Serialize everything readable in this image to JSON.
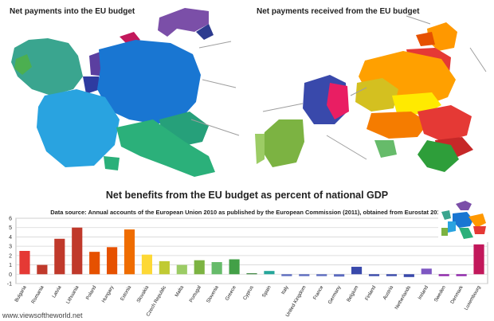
{
  "maps": {
    "left_title": "Net payments into the EU budget",
    "right_title": "Net payments received from the EU budget"
  },
  "watermark": "www.viewsoftheworld.net",
  "chart_data": {
    "type": "bar",
    "title": "Net benefits from the EU budget as percent of national GDP",
    "subtitle": "Data source: Annual accounts of the European Union 2010 as published by the European Commission (2011), obtained from Eurostat 2012",
    "ylim": [
      -1,
      6
    ],
    "yticks": [
      -1,
      0,
      1,
      2,
      3,
      4,
      5,
      6
    ],
    "grid": true,
    "categories": [
      "Bulgaria",
      "Romania",
      "Latvia",
      "Lithuania",
      "Poland",
      "Hungary",
      "Estonia",
      "Slovakia",
      "Czech Republic",
      "Malta",
      "Portugal",
      "Slovenia",
      "Greece",
      "Cyprus",
      "Spain",
      "Italy",
      "United Kingdom",
      "France",
      "Germany",
      "Belgium",
      "Finland",
      "Austria",
      "Netherlands",
      "Ireland",
      "Sweden",
      "Denmark",
      "Luxembourg"
    ],
    "values": [
      2.5,
      1.0,
      3.8,
      5.0,
      2.4,
      2.9,
      4.8,
      2.1,
      1.4,
      1.0,
      1.5,
      1.3,
      1.6,
      0.1,
      0.35,
      -0.2,
      -0.2,
      -0.2,
      -0.25,
      0.8,
      -0.2,
      -0.2,
      -0.3,
      0.6,
      -0.2,
      -0.2,
      3.2
    ],
    "colors": [
      "#e53935",
      "#c0392b",
      "#c0392b",
      "#c0392b",
      "#e65100",
      "#e65100",
      "#ef6c00",
      "#fdd835",
      "#c0ca33",
      "#9ccc65",
      "#7cb342",
      "#66bb6a",
      "#43a047",
      "#2e7d32",
      "#26a69a",
      "#5c6bc0",
      "#5c6bc0",
      "#5c6bc0",
      "#5c6bc0",
      "#3949ab",
      "#3949ab",
      "#3949ab",
      "#3949ab",
      "#7e57c2",
      "#8e24aa",
      "#8e24aa",
      "#c2185b"
    ]
  }
}
